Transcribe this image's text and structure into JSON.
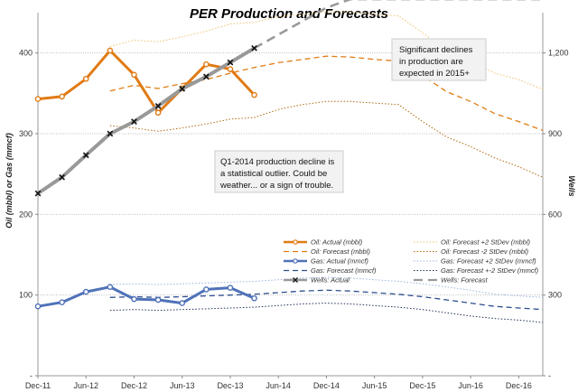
{
  "chart_data": {
    "type": "line",
    "title": "PER Production and Forecasts",
    "ylabel_left": "Oil (mbbl) or Gas (mmcf)",
    "ylabel_right": "Wells",
    "x_ticks": [
      "Dec-11",
      "Jun-12",
      "Dec-12",
      "Jun-13",
      "Dec-13",
      "Jun-14",
      "Dec-14",
      "Jun-15",
      "Dec-15",
      "Jun-16",
      "Dec-16"
    ],
    "xlim": [
      0,
      21
    ],
    "ylim_left": [
      0,
      450
    ],
    "yticks_left": [
      "-",
      "100",
      "200",
      "300",
      "400"
    ],
    "ylim_right": [
      0,
      1350
    ],
    "yticks_right": [
      "-",
      "300",
      "600",
      "900",
      "1,200"
    ],
    "x_unit_note": "x values are quarters after Dec-11 (two quarters per tick)",
    "series": [
      {
        "name": "Oil: Actual (mbbl)",
        "axis": "left",
        "color": "#e07b14",
        "style": "solid-marker",
        "x": [
          0,
          1,
          2,
          3,
          4,
          5,
          6,
          7,
          8,
          9
        ],
        "y": [
          343,
          346,
          368,
          403,
          373,
          326,
          356,
          386,
          380,
          348
        ]
      },
      {
        "name": "Oil: Forecast (mbbl)",
        "axis": "left",
        "color": "#e07b14",
        "style": "dashed",
        "x": [
          3,
          4,
          5,
          6,
          7,
          8,
          9,
          10,
          11,
          12,
          13,
          14,
          15,
          16,
          17,
          18,
          19,
          20,
          21
        ],
        "y": [
          353,
          360,
          356,
          362,
          367,
          375,
          382,
          388,
          392,
          396,
          395,
          392,
          390,
          372,
          352,
          340,
          325,
          315,
          304
        ]
      },
      {
        "name": "Oil: Forecast +2 StDev (mbbl)",
        "axis": "left",
        "color": "#f0c070",
        "style": "dotted",
        "x": [
          3,
          4,
          5,
          6,
          7,
          8,
          9,
          10,
          11,
          12,
          13,
          14,
          15,
          16,
          17,
          18,
          19,
          20,
          21
        ],
        "y": [
          408,
          416,
          414,
          420,
          427,
          436,
          438,
          445,
          448,
          451,
          451,
          448,
          446,
          425,
          402,
          390,
          375,
          367,
          355
        ]
      },
      {
        "name": "Oil: Forecast -2 StDev (mbbl)",
        "axis": "left",
        "color": "#b06a10",
        "style": "dotted",
        "x": [
          3,
          4,
          5,
          6,
          7,
          8,
          9,
          10,
          11,
          12,
          13,
          14,
          15,
          16,
          17,
          18,
          19,
          20,
          21
        ],
        "y": [
          310,
          307,
          303,
          307,
          312,
          318,
          320,
          330,
          336,
          340,
          340,
          338,
          336,
          315,
          296,
          284,
          270,
          259,
          246
        ]
      },
      {
        "name": "Gas: Actual (mmcf)",
        "axis": "left",
        "color": "#4f72b8",
        "style": "solid-marker",
        "x": [
          0,
          1,
          2,
          3,
          4,
          5,
          6,
          7,
          8,
          9
        ],
        "y": [
          86,
          91,
          104,
          110,
          95,
          94,
          90,
          107,
          109,
          96
        ]
      },
      {
        "name": "Gas: Forecast (mmcf)",
        "axis": "left",
        "color": "#2e4e8f",
        "style": "dashed",
        "x": [
          3,
          4,
          5,
          6,
          7,
          8,
          9,
          10,
          11,
          12,
          13,
          14,
          15,
          16,
          17,
          18,
          19,
          20,
          21
        ],
        "y": [
          97,
          98,
          97,
          98,
          99,
          100,
          101,
          103,
          105,
          106,
          105,
          103,
          101,
          98,
          94,
          90,
          86,
          84,
          82
        ]
      },
      {
        "name": "Gas: Forecast +2 StDev (mmcf)",
        "axis": "left",
        "color": "#9ab0e0",
        "style": "dotted",
        "x": [
          3,
          4,
          5,
          6,
          7,
          8,
          9,
          10,
          11,
          12,
          13,
          14,
          15,
          16,
          17,
          18,
          19,
          20,
          21
        ],
        "y": [
          113,
          114,
          113,
          114,
          115,
          116,
          117,
          119,
          121,
          122,
          121,
          119,
          117,
          114,
          110,
          106,
          101,
          99,
          97
        ]
      },
      {
        "name": "Gas: Forecast +-2 StDev (mmcf)",
        "axis": "left",
        "color": "#1f2f55",
        "style": "dotted",
        "x": [
          3,
          4,
          5,
          6,
          7,
          8,
          9,
          10,
          11,
          12,
          13,
          14,
          15,
          16,
          17,
          18,
          19,
          20,
          21
        ],
        "y": [
          81,
          82,
          81,
          82,
          83,
          84,
          85,
          87,
          89,
          90,
          89,
          87,
          85,
          82,
          78,
          74,
          71,
          69,
          66
        ]
      },
      {
        "name": "Wells: Actual",
        "axis": "right",
        "color": "#999999",
        "style": "solid-xmarker",
        "x": [
          0,
          1,
          2,
          3,
          4,
          5,
          6,
          7,
          8,
          9
        ],
        "y": [
          678,
          738,
          820,
          900,
          945,
          1003,
          1067,
          1112,
          1165,
          1218
        ]
      },
      {
        "name": "Wells: Forecast",
        "axis": "right",
        "color": "#999999",
        "style": "dashed",
        "x": [
          9,
          10,
          11,
          12,
          13,
          14,
          15,
          16,
          17,
          18,
          19,
          20,
          21
        ],
        "y": [
          1218,
          1268,
          1318,
          1368,
          1400,
          1400,
          1400,
          1400,
          1400,
          1400,
          1400,
          1400,
          1400
        ]
      }
    ],
    "annotations": [
      {
        "text": "Q1-2014 production decline is a statistical outlier. Could be weather... or a sign of trouble.",
        "lines": [
          "Q1-2014 production decline is",
          "a statistical outlier. Could be",
          "weather... or a sign of trouble."
        ]
      },
      {
        "text": "Significant declines in production are expected in 2015+",
        "lines": [
          "Significant declines",
          "in production are",
          "expected in 2015+"
        ]
      }
    ],
    "grid": "horizontal",
    "legend_position": "lower-right"
  }
}
